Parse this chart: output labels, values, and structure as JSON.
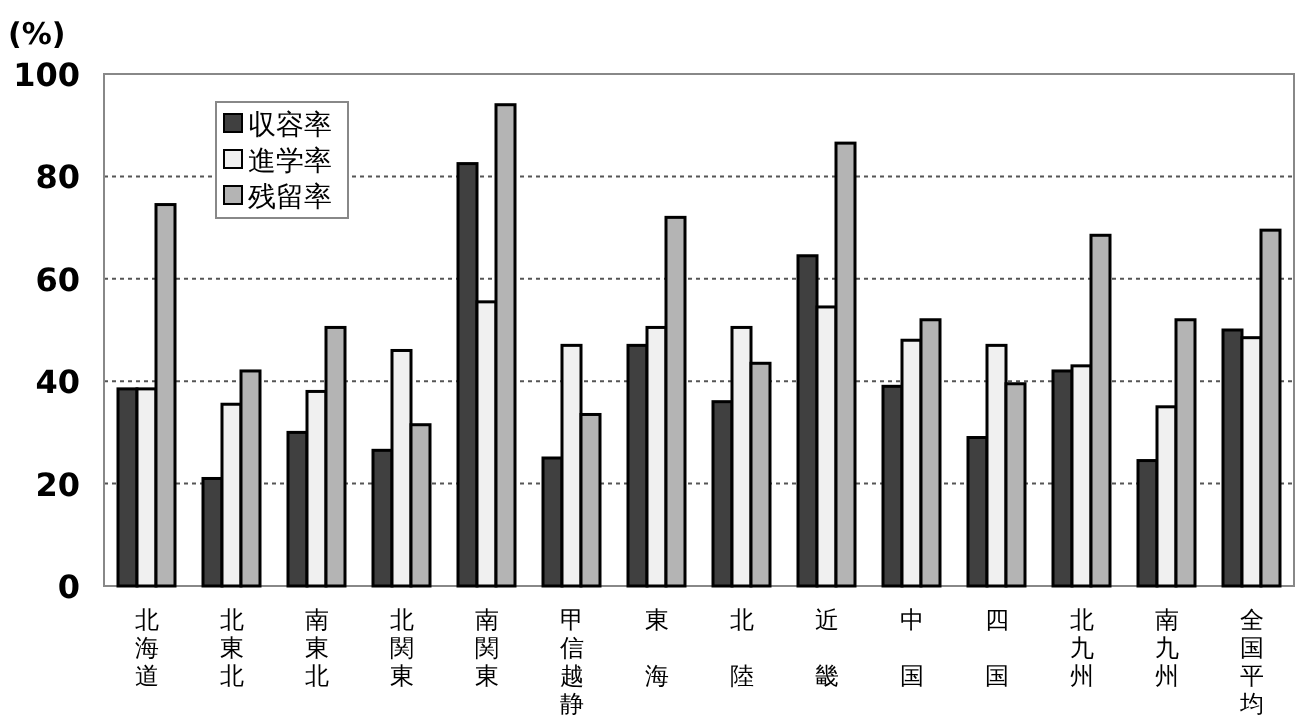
{
  "chart_data": {
    "type": "bar",
    "ylabel": "(%)",
    "categories": [
      "北海道",
      "北東北",
      "南東北",
      "北関東",
      "南関東",
      "甲信越静",
      "東海",
      "北陸",
      "近畿",
      "中国",
      "四国",
      "北九州",
      "南九州",
      "全国平均"
    ],
    "series": [
      {
        "name": "収容率",
        "color": "#404040",
        "values": [
          38.5,
          21,
          30,
          26.5,
          82.5,
          25,
          47,
          36,
          64.5,
          39,
          29,
          42,
          24.5,
          50
        ]
      },
      {
        "name": "進学率",
        "color": "#f0f0f0",
        "values": [
          38.5,
          35.5,
          38,
          46,
          55.5,
          47,
          50.5,
          50.5,
          54.5,
          48,
          47,
          43,
          35,
          48.5
        ]
      },
      {
        "name": "残留率",
        "color": "#b4b4b4",
        "values": [
          74.5,
          42,
          50.5,
          31.5,
          94,
          33.5,
          72,
          43.5,
          86.5,
          52,
          39.5,
          68.5,
          52,
          69.5
        ]
      }
    ],
    "ylim": [
      0,
      100
    ],
    "yticks": [
      0,
      20,
      40,
      60,
      80,
      100
    ],
    "grid": "y",
    "legend": "top left"
  }
}
